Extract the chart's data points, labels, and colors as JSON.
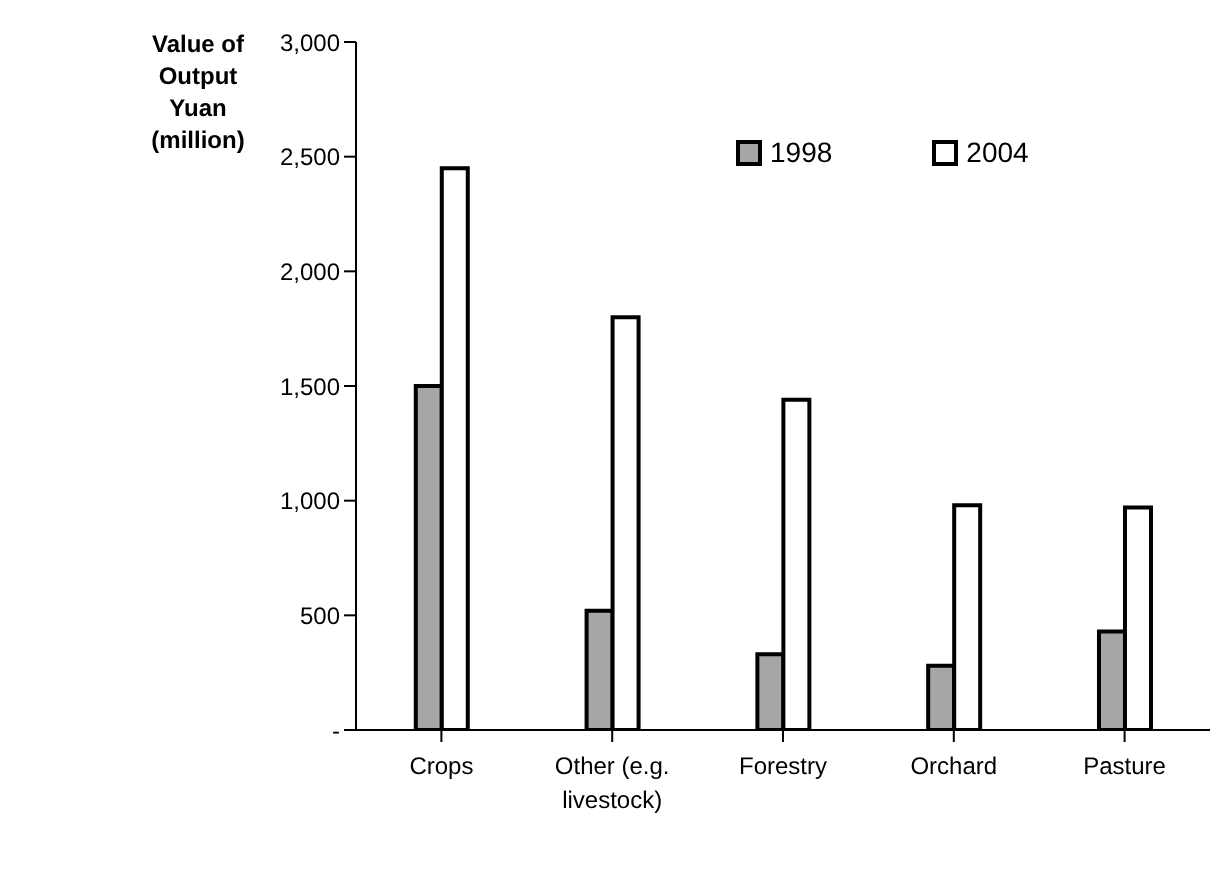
{
  "chart_data": {
    "type": "bar",
    "ylabel": "Value of Output Yuan (million)",
    "categories": [
      "Crops",
      "Other (e.g. livestock)",
      "Forestry",
      "Orchard",
      "Pasture"
    ],
    "series": [
      {
        "name": "1998",
        "color": "#a6a6a6",
        "values": [
          1500,
          520,
          330,
          280,
          430
        ]
      },
      {
        "name": "2004",
        "color": "#ffffff",
        "values": [
          2450,
          1800,
          1440,
          980,
          970
        ]
      }
    ],
    "ylim": [
      0,
      3000
    ],
    "yticks": [
      {
        "value": 0,
        "label": "-"
      },
      {
        "value": 500,
        "label": "500"
      },
      {
        "value": 1000,
        "label": "1,000"
      },
      {
        "value": 1500,
        "label": "1,500"
      },
      {
        "value": 2000,
        "label": "2,000"
      },
      {
        "value": 2500,
        "label": "2,500"
      },
      {
        "value": 3000,
        "label": "3,000"
      }
    ],
    "grid": false,
    "legend": "top right"
  }
}
